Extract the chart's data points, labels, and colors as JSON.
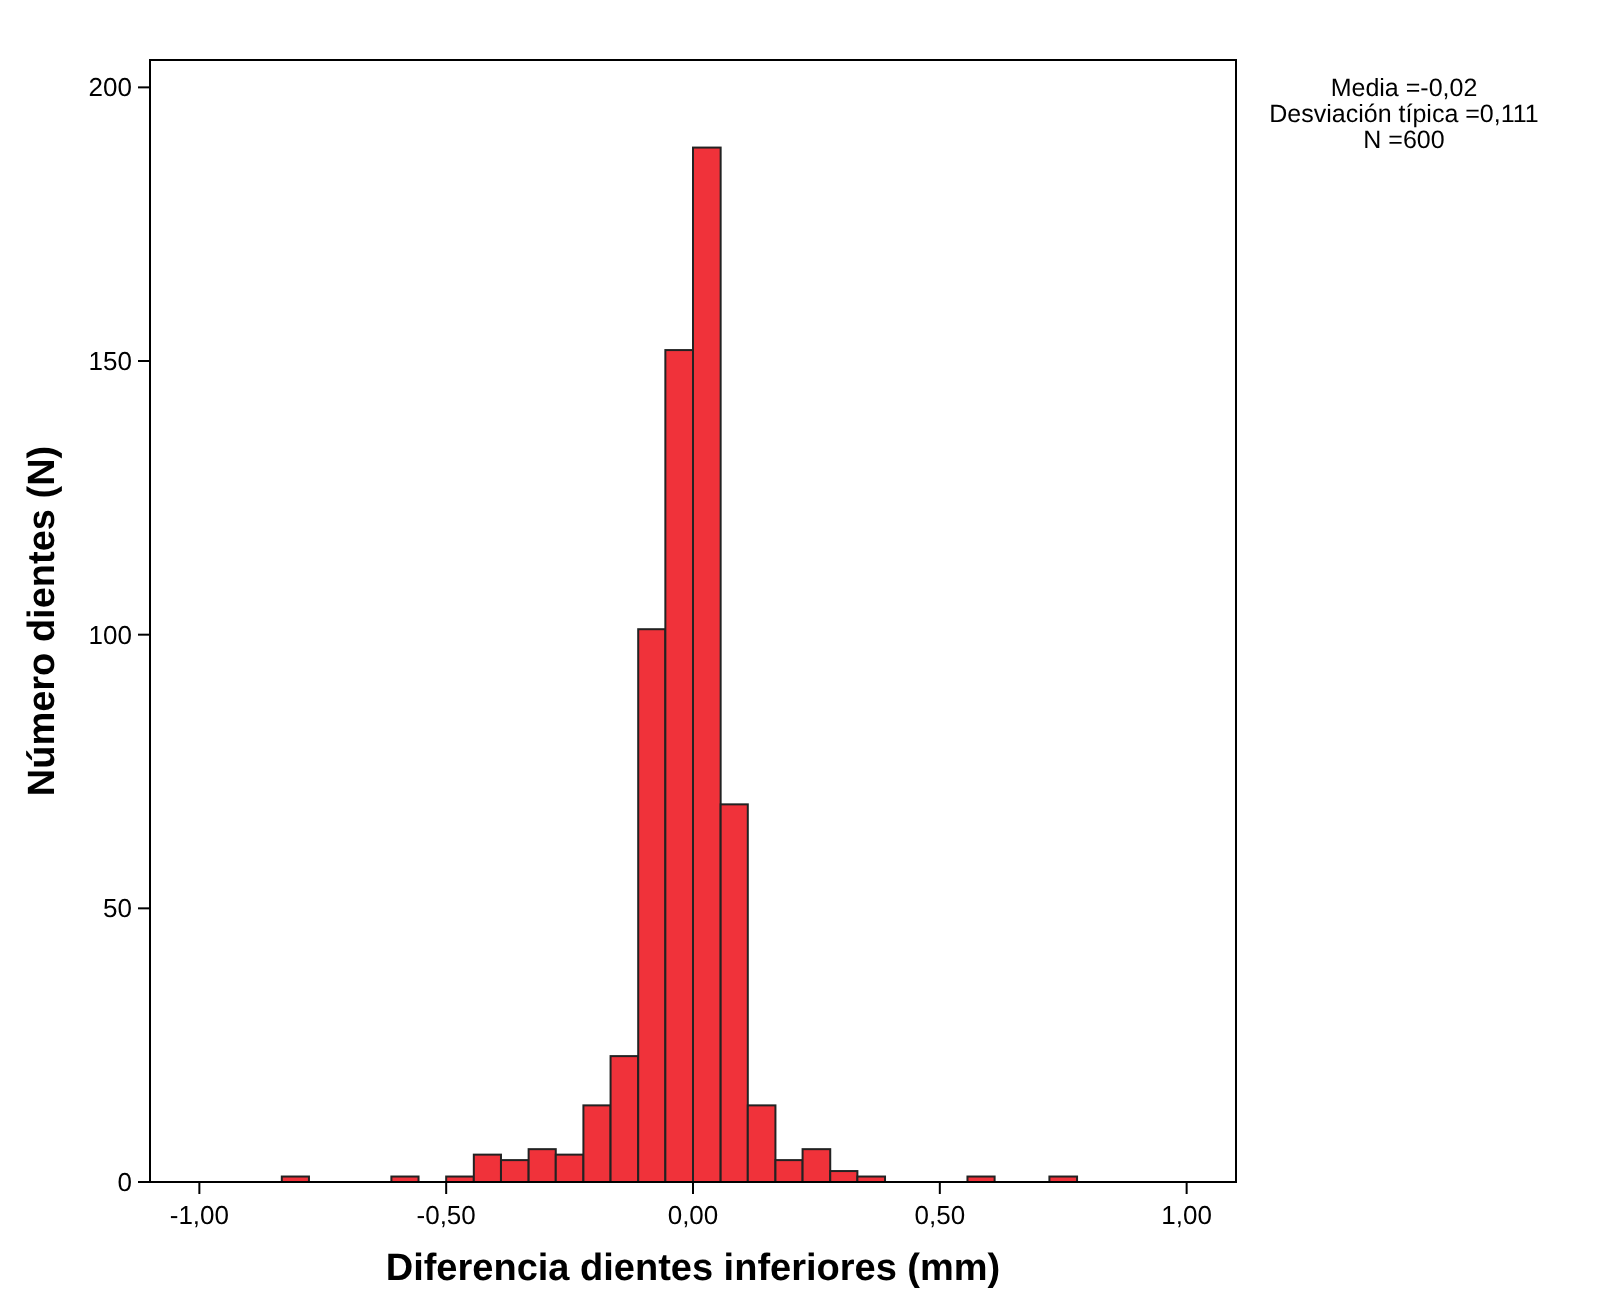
{
  "chart_data": {
    "type": "histogram",
    "xlabel": "Diferencia dientes inferiores (mm)",
    "ylabel": "Número dientes (N)",
    "bins": [
      -0.833,
      -0.778,
      -0.722,
      -0.667,
      -0.611,
      -0.556,
      -0.5,
      -0.444,
      -0.389,
      -0.333,
      -0.278,
      -0.222,
      -0.167,
      -0.111,
      -0.056,
      0,
      0.056,
      0.111,
      0.167,
      0.222,
      0.278,
      0.333,
      0.389,
      0.444,
      0.5,
      0.556,
      0.611,
      0.667,
      0.722,
      0.778
    ],
    "values": [
      1,
      0,
      0,
      0,
      1,
      0,
      1,
      5,
      4,
      6,
      5,
      14,
      23,
      101,
      152,
      189,
      69,
      14,
      4,
      6,
      2,
      1,
      0,
      0,
      0,
      1,
      0,
      0,
      1
    ],
    "color": "#f0323a",
    "xlim": [
      -1.1,
      1.1
    ],
    "ylim": [
      0,
      205
    ],
    "xticks": [
      {
        "value": -1,
        "label": "-1,00"
      },
      {
        "value": -0.5,
        "label": "-0,50"
      },
      {
        "value": 0,
        "label": "0,00"
      },
      {
        "value": 0.5,
        "label": "0,50"
      },
      {
        "value": 1,
        "label": "1,00"
      }
    ],
    "yticks": [
      0,
      50,
      100,
      150,
      200
    ],
    "grid": false,
    "annotations": [
      "Media =-0,02",
      "Desviación típica =0,111",
      "N =600"
    ]
  }
}
